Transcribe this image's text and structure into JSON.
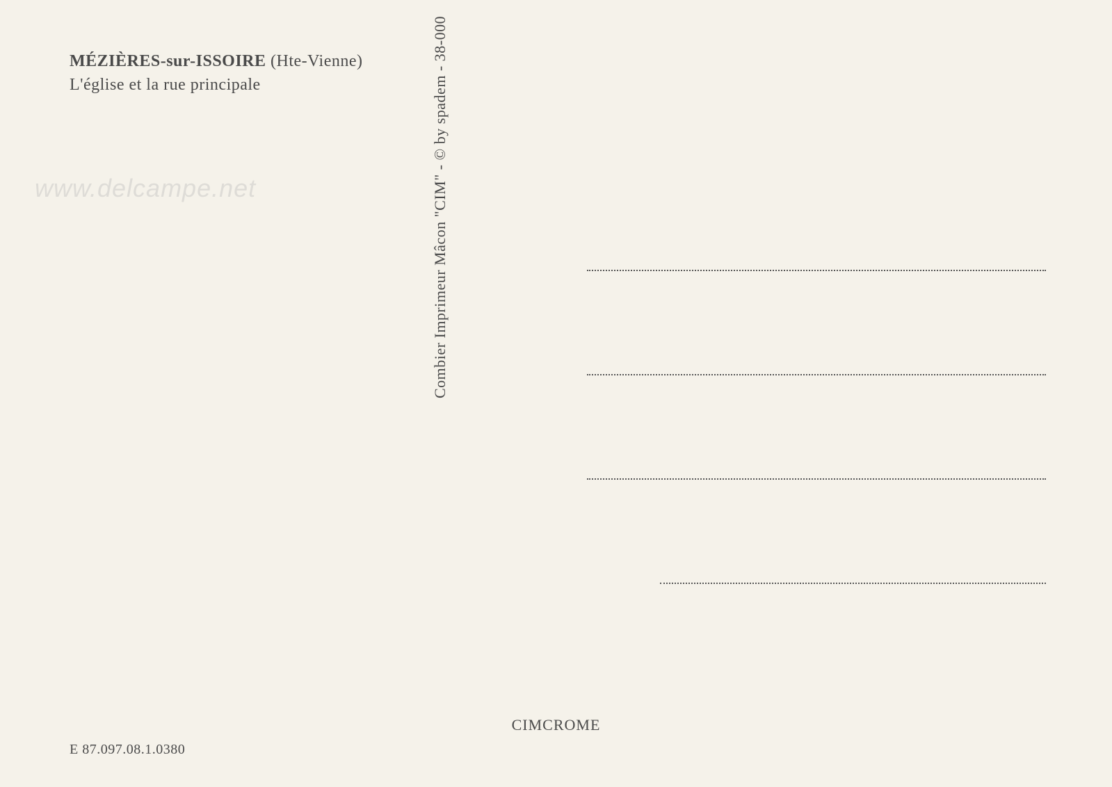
{
  "header": {
    "location_name": "MÉZIÈRES-sur-ISSOIRE",
    "region": "(Hte-Vienne)",
    "description": "L'église et la rue principale"
  },
  "publisher": {
    "vertical_text": "Combier Imprimeur Mâcon \"CIM\" - © by spadem - 38-000"
  },
  "footer": {
    "process_name": "CIMCROME",
    "reference_code": "E  87.097.08.1.0380"
  },
  "watermark": {
    "text": "www.delcampe.net"
  },
  "styling": {
    "background_color": "#f5f2ea",
    "text_color": "#4a4a4a",
    "dotted_line_color": "#555555",
    "watermark_color": "rgba(180, 180, 180, 0.35)",
    "title_fontsize": 24,
    "vertical_fontsize": 22,
    "footer_fontsize": 22,
    "reference_fontsize": 20,
    "watermark_fontsize": 36,
    "address_line_count": 4,
    "address_line_spacing": 148,
    "address_area_width": 660
  }
}
